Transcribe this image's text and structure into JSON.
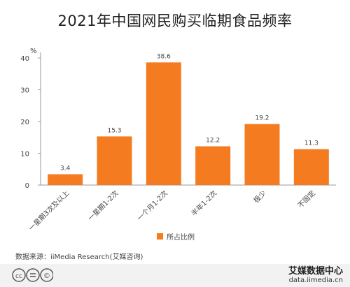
{
  "title": "2021年中国网民购买临期食品频率",
  "source": "数据来源：iiMedia Research(艾媒咨询)",
  "brand": {
    "name": "艾媒数据中心",
    "url": "data.iimedia.cn",
    "logo_icon": "iimedia-logo-icon"
  },
  "license_icons": [
    "cc-icon",
    "equals-icon",
    "copyright-icon"
  ],
  "colors": {
    "bar": "#f47b20",
    "axis": "#999999",
    "text": "#444444"
  },
  "chart_data": {
    "type": "bar",
    "categories": [
      "一星期3次及以上",
      "一星期1-2次",
      "一个月1-2次",
      "半年1-2次",
      "极少",
      "不固定"
    ],
    "series": [
      {
        "name": "所占比例",
        "values": [
          3.4,
          15.3,
          38.6,
          12.2,
          19.2,
          11.3
        ]
      }
    ],
    "value_labels": [
      "3.4",
      "15.3",
      "38.6",
      "12.2",
      "19.2",
      "11.3"
    ],
    "ylabel": "%",
    "yticks": [
      "0",
      "10",
      "20",
      "30",
      "40"
    ],
    "ylim": [
      0,
      40
    ],
    "grid": false,
    "legend_position": "bottom-center"
  }
}
